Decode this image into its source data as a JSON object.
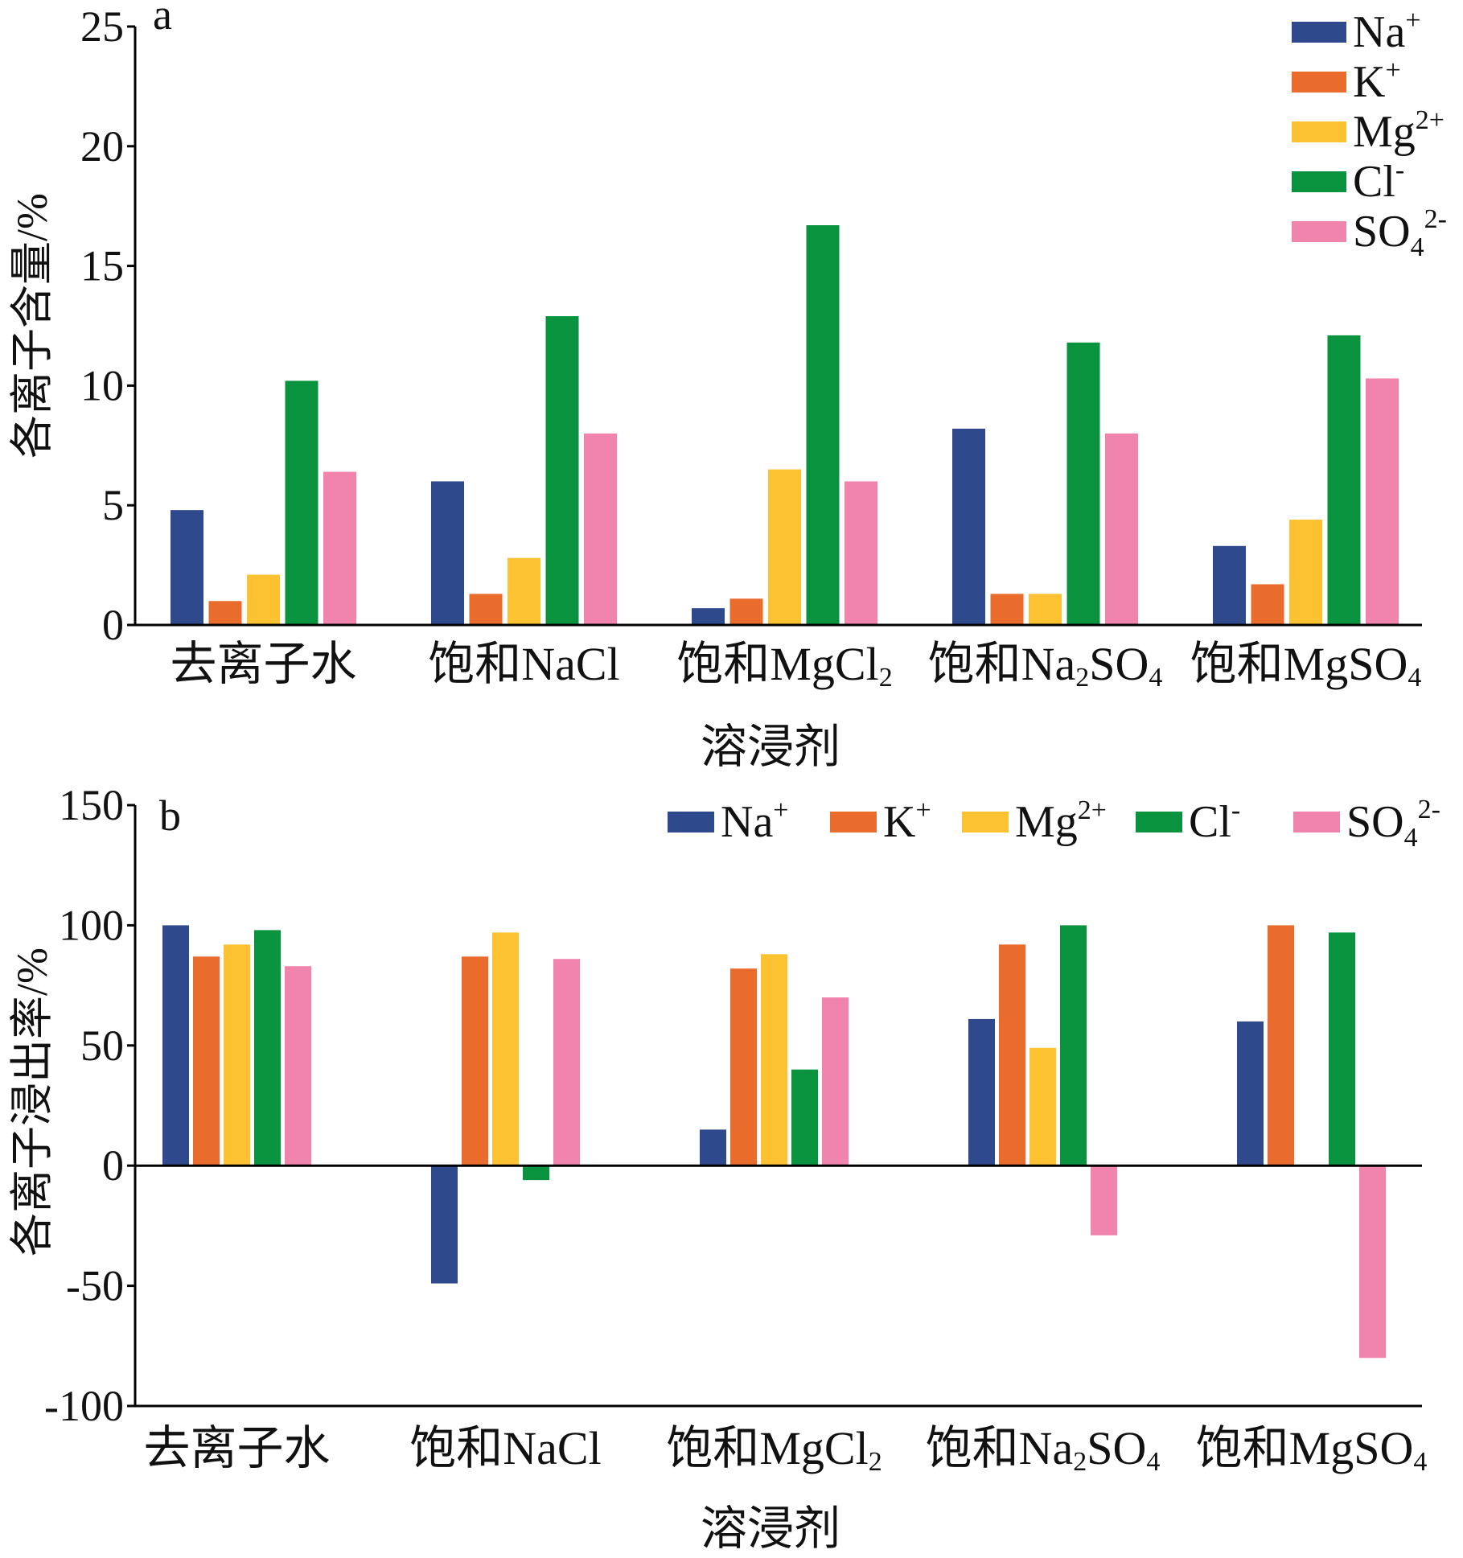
{
  "chart_data": [
    {
      "id": "a",
      "type": "bar",
      "panel_label": "a",
      "ylabel": "各离子含量/%",
      "xlabel": "溶浸剂",
      "ylim": [
        0,
        25
      ],
      "yticks": [
        0,
        5,
        10,
        15,
        20,
        25
      ],
      "legend_position": "top-right",
      "legend_layout": "vertical",
      "categories": [
        {
          "base": "去离子水",
          "formula": []
        },
        {
          "base": "饱和",
          "formula": [
            {
              "t": "NaCl"
            }
          ]
        },
        {
          "base": "饱和",
          "formula": [
            {
              "t": "MgCl"
            },
            {
              "t": "2",
              "sub": true
            }
          ]
        },
        {
          "base": "饱和",
          "formula": [
            {
              "t": "Na"
            },
            {
              "t": "2",
              "sub": true
            },
            {
              "t": "SO"
            },
            {
              "t": "4",
              "sub": true
            }
          ]
        },
        {
          "base": "饱和",
          "formula": [
            {
              "t": "MgSO"
            },
            {
              "t": "4",
              "sub": true
            }
          ]
        }
      ],
      "series": [
        {
          "name": "Na",
          "sup": "+",
          "sub": "",
          "color": "#2f4a8c",
          "values": [
            4.8,
            6.0,
            0.7,
            8.2,
            3.3
          ]
        },
        {
          "name": "K",
          "sup": "+",
          "sub": "",
          "color": "#e96c2c",
          "values": [
            1.0,
            1.3,
            1.1,
            1.3,
            1.7
          ]
        },
        {
          "name": "Mg",
          "sup": "2+",
          "sub": "",
          "color": "#fcc232",
          "values": [
            2.1,
            2.8,
            6.5,
            1.3,
            4.4
          ]
        },
        {
          "name": "Cl",
          "sup": "-",
          "sub": "",
          "color": "#0a933f",
          "values": [
            10.2,
            12.9,
            16.7,
            11.8,
            12.1
          ]
        },
        {
          "name": "SO",
          "sup": "2-",
          "sub": "4",
          "color": "#f184ac",
          "values": [
            6.4,
            8.0,
            6.0,
            8.0,
            10.3
          ]
        }
      ]
    },
    {
      "id": "b",
      "type": "bar",
      "panel_label": "b",
      "ylabel": "各离子浸出率/%",
      "xlabel": "溶浸剂",
      "ylim": [
        -100,
        150
      ],
      "yticks": [
        -100,
        -50,
        0,
        50,
        100,
        150
      ],
      "legend_position": "top-right",
      "legend_layout": "horizontal",
      "categories": [
        {
          "base": "去离子水",
          "formula": []
        },
        {
          "base": "饱和",
          "formula": [
            {
              "t": "NaCl"
            }
          ]
        },
        {
          "base": "饱和",
          "formula": [
            {
              "t": "MgCl"
            },
            {
              "t": "2",
              "sub": true
            }
          ]
        },
        {
          "base": "饱和",
          "formula": [
            {
              "t": "Na"
            },
            {
              "t": "2",
              "sub": true
            },
            {
              "t": "SO"
            },
            {
              "t": "4",
              "sub": true
            }
          ]
        },
        {
          "base": "饱和",
          "formula": [
            {
              "t": "MgSO"
            },
            {
              "t": "4",
              "sub": true
            }
          ]
        }
      ],
      "series": [
        {
          "name": "Na",
          "sup": "+",
          "sub": "",
          "color": "#2f4a8c",
          "values": [
            100,
            -49,
            15,
            61,
            60
          ]
        },
        {
          "name": "K",
          "sup": "+",
          "sub": "",
          "color": "#e96c2c",
          "values": [
            87,
            87,
            82,
            92,
            100
          ]
        },
        {
          "name": "Mg",
          "sup": "2+",
          "sub": "",
          "color": "#fcc232",
          "values": [
            92,
            97,
            88,
            49,
            null
          ]
        },
        {
          "name": "Cl",
          "sup": "-",
          "sub": "",
          "color": "#0a933f",
          "values": [
            98,
            -6,
            40,
            100,
            97
          ]
        },
        {
          "name": "SO",
          "sup": "2-",
          "sub": "4",
          "color": "#f184ac",
          "values": [
            83,
            86,
            70,
            -29,
            -80
          ]
        }
      ]
    }
  ]
}
